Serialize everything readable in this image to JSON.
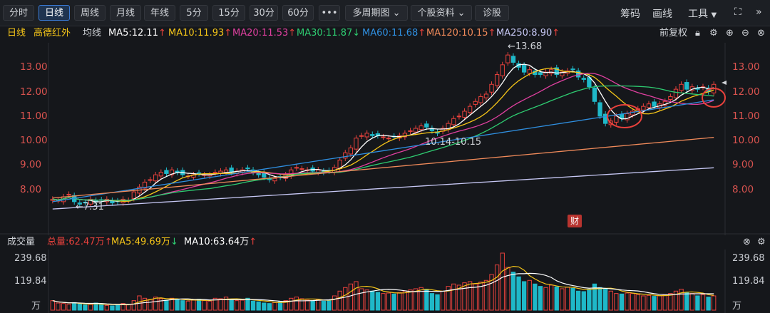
{
  "toolbar": {
    "tabs": [
      {
        "label": "分时",
        "active": false
      },
      {
        "label": "日线",
        "active": true
      },
      {
        "label": "周线",
        "active": false
      },
      {
        "label": "月线",
        "active": false
      },
      {
        "label": "年线",
        "active": false
      },
      {
        "label": "5分",
        "active": false
      },
      {
        "label": "15分",
        "active": false
      },
      {
        "label": "30分",
        "active": false
      },
      {
        "label": "60分",
        "active": false
      }
    ],
    "more_label": "•••",
    "multi_period_label": "多周期图",
    "stock_info_label": "个股资料",
    "diagnose_label": "诊股",
    "chips_label": "筹码",
    "draw_label": "画线",
    "tools_label": "工具"
  },
  "indicators": {
    "period": "日线",
    "stock_name": "高德红外",
    "avg_label": "均线",
    "ma5": "MA5:12.11",
    "ma10": "MA10:11.93",
    "ma20": "MA20:11.53",
    "ma30": "MA30:11.87",
    "ma60": "MA60:11.68",
    "ma120": "MA120:10.15",
    "ma250": "MA250:8.90",
    "fq_label": "前复权",
    "up_arrow": "↑",
    "down_arrow": "↓"
  },
  "annotations": {
    "high_label": "←13.68",
    "low_label": "←7.31",
    "range_label": "10.14-10.15",
    "fin_badge": "财"
  },
  "volume": {
    "title": "成交量",
    "total": "总量:62.47万",
    "ma5": "MA5:49.69万",
    "ma10": "MA10:63.64万",
    "unit": "万",
    "ticks": [
      "239.68",
      "119.84"
    ]
  },
  "colors": {
    "up": "#e8413c",
    "down": "#1fb8c8",
    "ma5": "#ffffff",
    "ma10": "#f5c518",
    "ma20": "#e040a0",
    "ma30": "#2ecc71",
    "ma60": "#2f8fe0",
    "ma120": "#f08a5a",
    "ma250": "#c7c8f5"
  },
  "chart_data": {
    "type": "candlestick",
    "y_ticks": [
      "13.00",
      "12.00",
      "11.00",
      "10.00",
      "9.00",
      "8.00"
    ],
    "ylim": [
      7.0,
      14.0
    ],
    "high": 13.68,
    "low": 7.31,
    "close_series": [
      7.6,
      7.55,
      7.7,
      7.8,
      7.5,
      7.4,
      7.45,
      7.6,
      7.5,
      7.55,
      7.6,
      7.45,
      7.5,
      7.6,
      7.55,
      7.9,
      8.1,
      8.3,
      8.4,
      8.6,
      8.7,
      8.65,
      8.8,
      8.7,
      8.6,
      8.55,
      8.6,
      8.65,
      8.6,
      8.6,
      8.7,
      8.75,
      8.8,
      8.7,
      8.75,
      8.8,
      8.85,
      8.7,
      8.6,
      8.5,
      8.4,
      8.45,
      8.5,
      8.6,
      8.8,
      8.9,
      8.85,
      8.8,
      8.75,
      8.8,
      8.7,
      8.75,
      8.9,
      9.2,
      9.5,
      9.7,
      10.1,
      10.2,
      10.3,
      10.2,
      10.2,
      10.15,
      10.1,
      10.15,
      10.2,
      10.3,
      10.4,
      10.5,
      10.6,
      10.55,
      10.4,
      10.3,
      10.5,
      10.7,
      10.9,
      11.0,
      11.2,
      11.4,
      11.6,
      11.8,
      11.9,
      12.3,
      12.7,
      13.1,
      13.5,
      13.2,
      13.0,
      12.8,
      12.9,
      12.7,
      12.7,
      12.8,
      12.9,
      12.7,
      12.8,
      12.85,
      12.9,
      12.6,
      12.5,
      12.2,
      11.6,
      11.0,
      10.7,
      10.8,
      11.0,
      10.9,
      11.1,
      11.2,
      11.3,
      11.4,
      11.5,
      11.4,
      11.5,
      11.6,
      11.8,
      12.1,
      12.3,
      12.1,
      12.2,
      12.1,
      12.2,
      12.0,
      12.3
    ],
    "volume_series": [
      40,
      30,
      28,
      25,
      32,
      26,
      22,
      24,
      30,
      25,
      20,
      18,
      22,
      28,
      24,
      40,
      60,
      50,
      45,
      55,
      48,
      42,
      50,
      44,
      40,
      38,
      42,
      46,
      40,
      38,
      50,
      48,
      55,
      45,
      40,
      42,
      50,
      38,
      35,
      30,
      28,
      32,
      35,
      40,
      50,
      55,
      48,
      42,
      40,
      45,
      38,
      42,
      60,
      80,
      95,
      110,
      120,
      90,
      85,
      80,
      75,
      70,
      72,
      68,
      74,
      80,
      85,
      90,
      95,
      88,
      70,
      65,
      80,
      100,
      110,
      105,
      115,
      120,
      110,
      118,
      125,
      150,
      190,
      239.68,
      180,
      160,
      140,
      120,
      125,
      110,
      100,
      95,
      105,
      98,
      90,
      96,
      92,
      80,
      78,
      88,
      110,
      95,
      88,
      80,
      70,
      68,
      72,
      70,
      65,
      60,
      62,
      58,
      60,
      65,
      70,
      80,
      88,
      75,
      70,
      60,
      65,
      55,
      60
    ]
  }
}
